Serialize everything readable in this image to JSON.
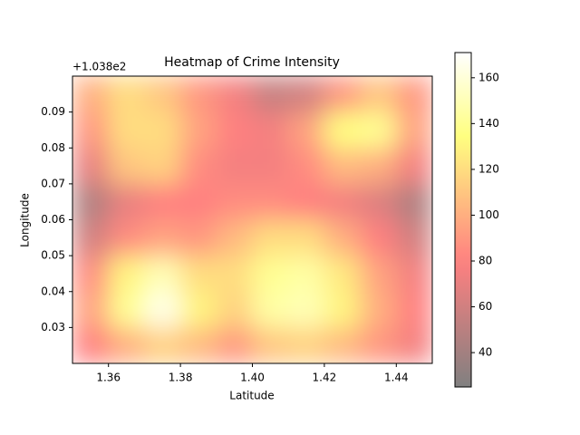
{
  "chart_data": {
    "type": "heatmap",
    "title": "Heatmap of Crime Intensity",
    "x_label": "Latitude",
    "y_label": "Longitude",
    "y_offset_label": "+1.038e2",
    "xlim": [
      1.35,
      1.45
    ],
    "xticks": [
      {
        "value": 1.36,
        "label": "1.36"
      },
      {
        "value": 1.38,
        "label": "1.38"
      },
      {
        "value": 1.4,
        "label": "1.40"
      },
      {
        "value": 1.42,
        "label": "1.42"
      },
      {
        "value": 1.44,
        "label": "1.44"
      }
    ],
    "ylim": [
      0.02,
      0.1
    ],
    "yticks": [
      0.03,
      0.04,
      0.05,
      0.06,
      0.07,
      0.08,
      0.09
    ],
    "colormap": "hot",
    "alpha": 0.5,
    "clim": [
      25,
      171
    ],
    "colorbar_ticks": [
      40,
      60,
      80,
      100,
      120,
      140,
      160
    ],
    "values": [
      [
        80,
        100,
        115,
        105,
        90,
        110,
        115,
        105,
        90,
        75
      ],
      [
        95,
        140,
        165,
        130,
        115,
        145,
        150,
        130,
        100,
        80
      ],
      [
        85,
        130,
        150,
        120,
        120,
        140,
        145,
        125,
        95,
        75
      ],
      [
        60,
        85,
        95,
        90,
        105,
        120,
        120,
        100,
        80,
        60
      ],
      [
        45,
        70,
        80,
        80,
        85,
        85,
        80,
        75,
        65,
        45
      ],
      [
        70,
        110,
        115,
        85,
        75,
        75,
        85,
        105,
        100,
        75
      ],
      [
        90,
        120,
        120,
        95,
        80,
        75,
        95,
        135,
        140,
        95
      ],
      [
        100,
        120,
        110,
        90,
        75,
        55,
        60,
        90,
        110,
        90
      ]
    ]
  }
}
